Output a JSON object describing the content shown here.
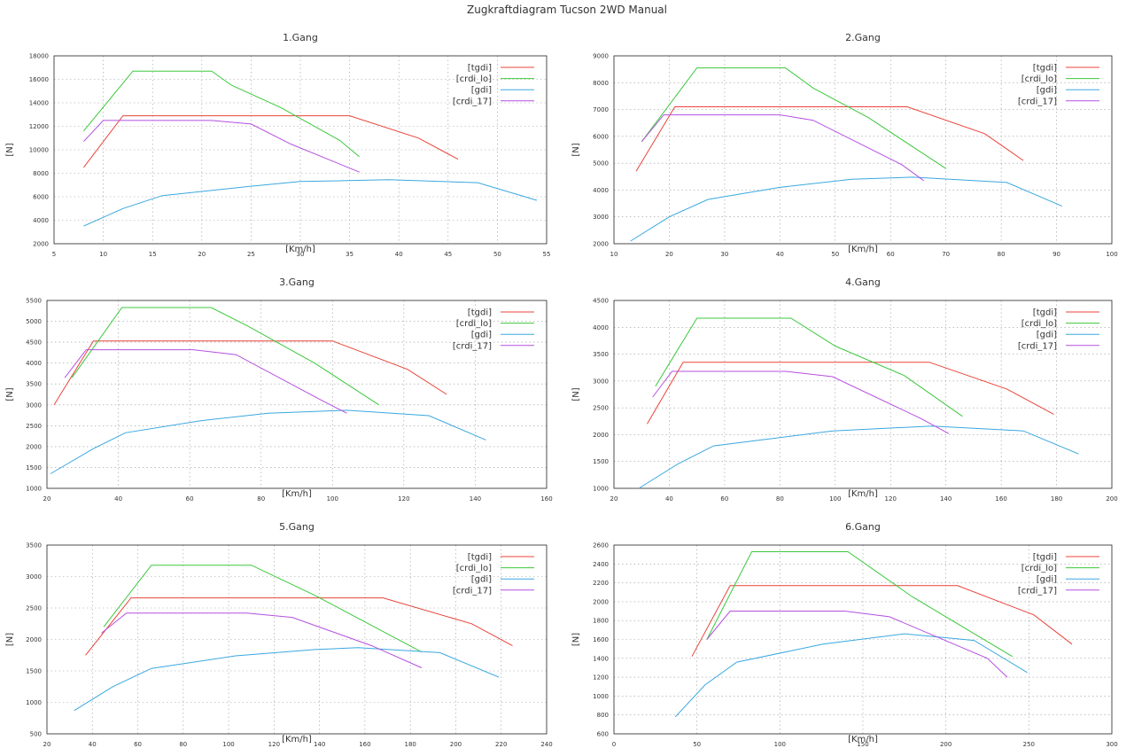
{
  "title": "Zugkraftdiagram Tucson 2WD Manual",
  "series_colors": {
    "tgdi": "#e8443a",
    "crdi_lo": "#3cc83c",
    "gdi": "#3aa8e0",
    "crdi_17": "#b450e0"
  },
  "chart_data": [
    {
      "type": "line",
      "title": "1.Gang",
      "xlabel": "[Km/h]",
      "ylabel": "[N]",
      "xlim": [
        5,
        55
      ],
      "ylim": [
        2000,
        18000
      ],
      "xticks": [
        5,
        10,
        15,
        20,
        25,
        30,
        35,
        40,
        45,
        50,
        55
      ],
      "yticks": [
        2000,
        4000,
        6000,
        8000,
        10000,
        12000,
        14000,
        16000,
        18000
      ],
      "grid": true,
      "legend": "top-right",
      "series": [
        {
          "name": "[tgdi]",
          "key": "tgdi",
          "points": [
            [
              8,
              8500
            ],
            [
              12,
              12900
            ],
            [
              35,
              12900
            ],
            [
              42,
              11000
            ],
            [
              46,
              9200
            ]
          ]
        },
        {
          "name": "[crdi_lo]",
          "key": "crdi_lo",
          "points": [
            [
              8,
              11600
            ],
            [
              13,
              16700
            ],
            [
              21,
              16700
            ],
            [
              23,
              15500
            ],
            [
              28,
              13600
            ],
            [
              34,
              10800
            ],
            [
              36,
              9400
            ]
          ]
        },
        {
          "name": "[gdi]",
          "key": "gdi",
          "points": [
            [
              8,
              3500
            ],
            [
              12,
              5000
            ],
            [
              16,
              6100
            ],
            [
              25,
              6900
            ],
            [
              30,
              7300
            ],
            [
              39,
              7450
            ],
            [
              48,
              7200
            ],
            [
              54,
              5700
            ]
          ]
        },
        {
          "name": "[crdi_17]",
          "key": "crdi_17",
          "points": [
            [
              8,
              10700
            ],
            [
              10,
              12500
            ],
            [
              21,
              12500
            ],
            [
              25,
              12200
            ],
            [
              29,
              10500
            ],
            [
              36,
              8100
            ]
          ]
        }
      ]
    },
    {
      "type": "line",
      "title": "2.Gang",
      "xlabel": "[Km/h]",
      "ylabel": "[N]",
      "xlim": [
        10,
        100
      ],
      "ylim": [
        2000,
        9000
      ],
      "xticks": [
        10,
        20,
        30,
        40,
        50,
        60,
        70,
        80,
        90,
        100
      ],
      "yticks": [
        2000,
        3000,
        4000,
        5000,
        6000,
        7000,
        8000,
        9000
      ],
      "grid": true,
      "legend": "top-right",
      "series": [
        {
          "name": "[tgdi]",
          "key": "tgdi",
          "points": [
            [
              14,
              4700
            ],
            [
              21,
              7100
            ],
            [
              63,
              7100
            ],
            [
              77,
              6100
            ],
            [
              84,
              5100
            ]
          ]
        },
        {
          "name": "[crdi_lo]",
          "key": "crdi_lo",
          "points": [
            [
              15,
              5800
            ],
            [
              25,
              8550
            ],
            [
              41,
              8550
            ],
            [
              46,
              7800
            ],
            [
              56,
              6700
            ],
            [
              70,
              4800
            ]
          ]
        },
        {
          "name": "[gdi]",
          "key": "gdi",
          "points": [
            [
              13,
              2100
            ],
            [
              20,
              3000
            ],
            [
              27,
              3650
            ],
            [
              40,
              4100
            ],
            [
              53,
              4400
            ],
            [
              64,
              4480
            ],
            [
              81,
              4280
            ],
            [
              91,
              3400
            ]
          ]
        },
        {
          "name": "[crdi_17]",
          "key": "crdi_17",
          "points": [
            [
              15,
              5800
            ],
            [
              19,
              6800
            ],
            [
              40,
              6800
            ],
            [
              46,
              6600
            ],
            [
              62,
              4950
            ],
            [
              66,
              4350
            ]
          ]
        }
      ]
    },
    {
      "type": "line",
      "title": "3.Gang",
      "xlabel": "[Km/h]",
      "ylabel": "[N]",
      "xlim": [
        20,
        160
      ],
      "ylim": [
        1000,
        5500
      ],
      "xticks": [
        20,
        40,
        60,
        80,
        100,
        120,
        140,
        160
      ],
      "yticks": [
        1000,
        1500,
        2000,
        2500,
        3000,
        3500,
        4000,
        4500,
        5000,
        5500
      ],
      "grid": true,
      "legend": "top-right",
      "series": [
        {
          "name": "[tgdi]",
          "key": "tgdi",
          "points": [
            [
              22,
              3000
            ],
            [
              33,
              4530
            ],
            [
              100,
              4530
            ],
            [
              121,
              3850
            ],
            [
              132,
              3250
            ]
          ]
        },
        {
          "name": "[crdi_lo]",
          "key": "crdi_lo",
          "points": [
            [
              27,
              3650
            ],
            [
              41,
              5330
            ],
            [
              66,
              5330
            ],
            [
              76,
              4900
            ],
            [
              95,
              4000
            ],
            [
              113,
              3000
            ]
          ]
        },
        {
          "name": "[gdi]",
          "key": "gdi",
          "points": [
            [
              21,
              1350
            ],
            [
              33,
              1950
            ],
            [
              42,
              2330
            ],
            [
              63,
              2620
            ],
            [
              82,
              2800
            ],
            [
              104,
              2870
            ],
            [
              127,
              2740
            ],
            [
              143,
              2160
            ]
          ]
        },
        {
          "name": "[crdi_17]",
          "key": "crdi_17",
          "points": [
            [
              25,
              3650
            ],
            [
              31,
              4320
            ],
            [
              61,
              4320
            ],
            [
              73,
              4200
            ],
            [
              96,
              3150
            ],
            [
              104,
              2800
            ]
          ]
        }
      ]
    },
    {
      "type": "line",
      "title": "4.Gang",
      "xlabel": "[Km/h]",
      "ylabel": "[N]",
      "xlim": [
        20,
        200
      ],
      "ylim": [
        1000,
        4500
      ],
      "xticks": [
        20,
        40,
        60,
        80,
        100,
        120,
        140,
        160,
        180,
        200
      ],
      "yticks": [
        1000,
        1500,
        2000,
        2500,
        3000,
        3500,
        4000,
        4500
      ],
      "grid": true,
      "legend": "top-right",
      "series": [
        {
          "name": "[tgdi]",
          "key": "tgdi",
          "points": [
            [
              32,
              2200
            ],
            [
              45,
              3350
            ],
            [
              134,
              3350
            ],
            [
              162,
              2850
            ],
            [
              179,
              2380
            ]
          ]
        },
        {
          "name": "[crdi_lo]",
          "key": "crdi_lo",
          "points": [
            [
              35,
              2900
            ],
            [
              50,
              4170
            ],
            [
              84,
              4170
            ],
            [
              100,
              3650
            ],
            [
              125,
              3100
            ],
            [
              146,
              2340
            ]
          ]
        },
        {
          "name": "[gdi]",
          "key": "gdi",
          "points": [
            [
              29,
              1000
            ],
            [
              43,
              1450
            ],
            [
              56,
              1790
            ],
            [
              99,
              2070
            ],
            [
              135,
              2160
            ],
            [
              168,
              2070
            ],
            [
              188,
              1640
            ]
          ]
        },
        {
          "name": "[crdi_17]",
          "key": "crdi_17",
          "points": [
            [
              34,
              2700
            ],
            [
              41,
              3180
            ],
            [
              82,
              3180
            ],
            [
              99,
              3080
            ],
            [
              131,
              2300
            ],
            [
              141,
              2020
            ]
          ]
        }
      ]
    },
    {
      "type": "line",
      "title": "5.Gang",
      "xlabel": "[Km/h]",
      "ylabel": "[N]",
      "xlim": [
        20,
        240
      ],
      "ylim": [
        500,
        3500
      ],
      "xticks": [
        20,
        40,
        60,
        80,
        100,
        120,
        140,
        160,
        180,
        200,
        220,
        240
      ],
      "yticks": [
        500,
        1000,
        1500,
        2000,
        2500,
        3000,
        3500
      ],
      "grid": true,
      "legend": "top-right",
      "series": [
        {
          "name": "[tgdi]",
          "key": "tgdi",
          "points": [
            [
              37,
              1750
            ],
            [
              57,
              2660
            ],
            [
              168,
              2660
            ],
            [
              207,
              2250
            ],
            [
              225,
              1900
            ]
          ]
        },
        {
          "name": "[crdi_lo]",
          "key": "crdi_lo",
          "points": [
            [
              45,
              2200
            ],
            [
              66,
              3180
            ],
            [
              110,
              3180
            ],
            [
              138,
              2700
            ],
            [
              185,
              1800
            ]
          ]
        },
        {
          "name": "[gdi]",
          "key": "gdi",
          "points": [
            [
              32,
              870
            ],
            [
              49,
              1250
            ],
            [
              66,
              1540
            ],
            [
              103,
              1740
            ],
            [
              138,
              1840
            ],
            [
              157,
              1870
            ],
            [
              193,
              1790
            ],
            [
              219,
              1400
            ]
          ]
        },
        {
          "name": "[crdi_17]",
          "key": "crdi_17",
          "points": [
            [
              44,
              2100
            ],
            [
              55,
              2420
            ],
            [
              108,
              2420
            ],
            [
              128,
              2350
            ],
            [
              163,
              1900
            ],
            [
              185,
              1550
            ]
          ]
        }
      ]
    },
    {
      "type": "line",
      "title": "6.Gang",
      "xlabel": "[Km/h]",
      "ylabel": "[N]",
      "xlim": [
        0,
        300
      ],
      "ylim": [
        600,
        2600
      ],
      "xticks": [
        0,
        50,
        100,
        150,
        200,
        250,
        300
      ],
      "yticks": [
        600,
        800,
        1000,
        1200,
        1400,
        1600,
        1800,
        2000,
        2200,
        2400,
        2600
      ],
      "grid": true,
      "legend": "top-right",
      "series": [
        {
          "name": "[tgdi]",
          "key": "tgdi",
          "points": [
            [
              47,
              1420
            ],
            [
              70,
              2170
            ],
            [
              207,
              2170
            ],
            [
              253,
              1860
            ],
            [
              276,
              1550
            ]
          ]
        },
        {
          "name": "[crdi_lo]",
          "key": "crdi_lo",
          "points": [
            [
              56,
              1600
            ],
            [
              83,
              2530
            ],
            [
              141,
              2530
            ],
            [
              180,
              2050
            ],
            [
              240,
              1420
            ]
          ]
        },
        {
          "name": "[gdi]",
          "key": "gdi",
          "points": [
            [
              37,
              780
            ],
            [
              55,
              1120
            ],
            [
              74,
              1360
            ],
            [
              126,
              1550
            ],
            [
              175,
              1660
            ],
            [
              217,
              1590
            ],
            [
              249,
              1250
            ]
          ]
        },
        {
          "name": "[crdi_17]",
          "key": "crdi_17",
          "points": [
            [
              56,
              1600
            ],
            [
              70,
              1900
            ],
            [
              139,
              1900
            ],
            [
              166,
              1840
            ],
            [
              225,
              1400
            ],
            [
              237,
              1200
            ]
          ]
        }
      ]
    }
  ]
}
